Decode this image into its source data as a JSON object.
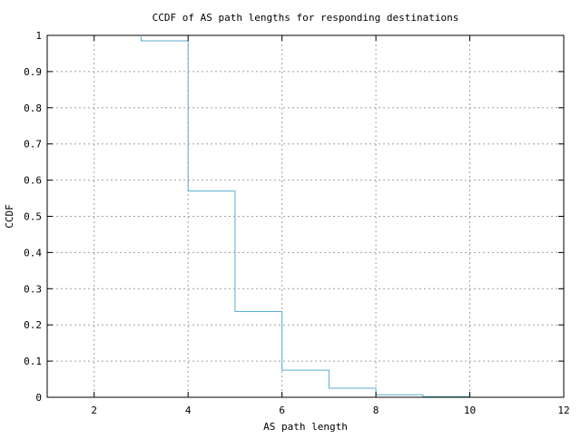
{
  "chart_data": {
    "type": "line",
    "title": "CCDF of AS path lengths for responding destinations",
    "xlabel": "AS path length",
    "ylabel": "CCDF",
    "xlim": [
      1,
      12
    ],
    "ylim": [
      0,
      1
    ],
    "xticks": [
      2,
      4,
      6,
      8,
      10,
      12
    ],
    "xtick_labels": [
      "2",
      "4",
      "6",
      "8",
      "10",
      "12"
    ],
    "yticks": [
      0,
      0.1,
      0.2,
      0.3,
      0.4,
      0.5,
      0.6,
      0.7,
      0.8,
      0.9,
      1
    ],
    "ytick_labels": [
      "0",
      "0.1",
      "0.2",
      "0.3",
      "0.4",
      "0.5",
      "0.6",
      "0.7",
      "0.8",
      "0.9",
      "1"
    ],
    "grid": true,
    "step": true,
    "series": [
      {
        "color": "#5aaccf",
        "x": [
          3,
          4,
          4,
          5,
          5,
          6,
          6,
          7,
          7,
          8,
          8,
          9,
          9,
          10
        ],
        "y": [
          0.985,
          0.985,
          0.57,
          0.57,
          0.237,
          0.237,
          0.075,
          0.075,
          0.025,
          0.025,
          0.007,
          0.007,
          0.002,
          0.002
        ]
      }
    ],
    "first_step_start": {
      "x": 3,
      "y": 0.997
    }
  }
}
